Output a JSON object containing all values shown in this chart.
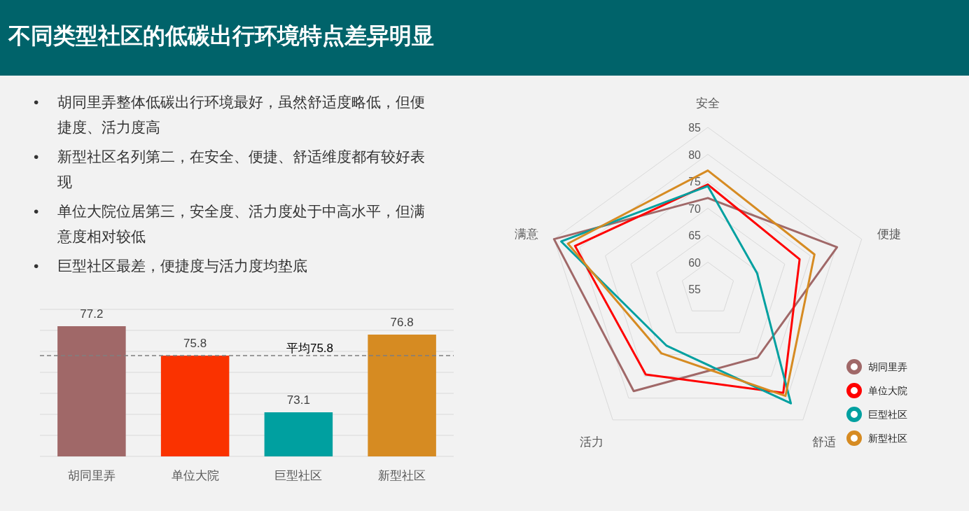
{
  "chart_data": [
    {
      "type": "bar",
      "title": "不同类型社区的低碳出行环境特点差异明显",
      "annotations": [
        "•\t胡同里弄整体低碳出行环境最好，虽然舒适度略低，但便捷度、活力度高",
        "•\t新型社区名列第二，在安全、便捷、舒适维度都有较好表现",
        "•\t单位大院位居第三，安全度、活力度处于中高水平，但满意度相对较低",
        "•\t巨型社区最差，便捷度与活力度均垫底"
      ],
      "categories": [
        "胡同里弄",
        "单位大院",
        "巨型社区",
        "新型社区"
      ],
      "values": [
        77.2,
        75.8,
        73.1,
        76.8
      ],
      "colors": [
        "#a06868",
        "#fa3200",
        "#00a0a0",
        "#d68b22"
      ],
      "data_labels": true,
      "ylim": [
        71,
        78
      ],
      "yticks": [
        {
          "value": 71,
          "label": null
        },
        {
          "value": 72,
          "label": null
        },
        {
          "value": 73,
          "label": null
        },
        {
          "value": 74,
          "label": null
        },
        {
          "value": 75,
          "label": null
        },
        {
          "value": 76,
          "label": null
        },
        {
          "value": 77,
          "label": null
        },
        {
          "value": 78,
          "label": null
        }
      ],
      "tick_labels": "x",
      "grid": "y",
      "ref_lines": [
        {
          "axis": "y",
          "value": 75.8,
          "label": "平均75.8",
          "color": "#7f7f7f",
          "line_style": "dashed"
        }
      ]
    },
    {
      "type": "radar",
      "categories": [
        "安全",
        "便捷",
        "舒适",
        "活力",
        "满意"
      ],
      "ylim": [
        55,
        85
      ],
      "yticks": [
        55,
        60,
        65,
        70,
        75,
        80,
        85
      ],
      "legend": "bottom right",
      "series": [
        {
          "name": "胡同里弄",
          "color": "#a06868",
          "values": [
            71.9,
            80.2,
            70.7,
            78.4,
            85.0
          ]
        },
        {
          "name": "单位大院",
          "color": "#ff0000",
          "values": [
            74.4,
            72.9,
            78.8,
            74.6,
            80.9
          ]
        },
        {
          "name": "巨型社区",
          "color": "#00a0a0",
          "values": [
            74.1,
            64.6,
            81.2,
            68.0,
            83.6
          ]
        },
        {
          "name": "新型社区",
          "color": "#d68b22",
          "values": [
            77.0,
            75.8,
            79.5,
            69.7,
            82.3
          ]
        }
      ]
    }
  ]
}
